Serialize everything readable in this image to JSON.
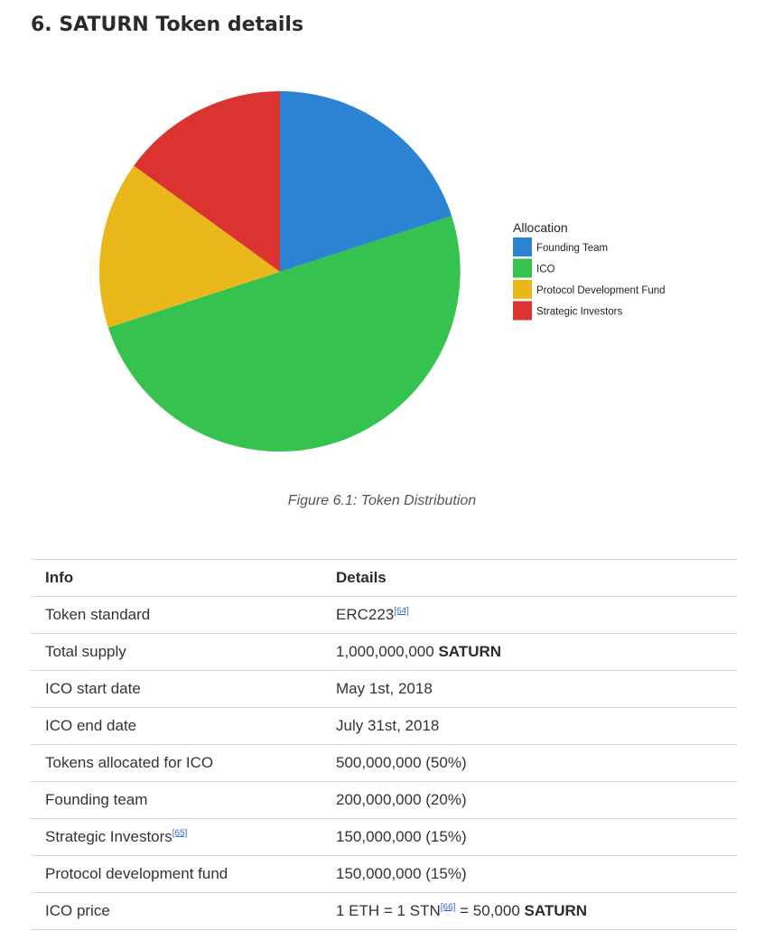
{
  "section": {
    "title": "6. SATURN Token details"
  },
  "chart_data": {
    "type": "pie",
    "legend_title": "Allocation",
    "legend_position": "right",
    "categories": [
      "Founding Team",
      "ICO",
      "Protocol Development Fund",
      "Strategic Investors"
    ],
    "values": [
      20,
      50,
      15,
      15
    ],
    "colors": [
      "#2b83d2",
      "#35c24f",
      "#eab81a",
      "#db3330"
    ]
  },
  "caption": "Figure 6.1: Token Distribution",
  "table": {
    "headers": [
      "Info",
      "Details"
    ],
    "rows": [
      {
        "label": "Token standard",
        "pre": "ERC223",
        "ref": "[64]",
        "mid": "",
        "bold": ""
      },
      {
        "label": "Total supply",
        "pre": "1,000,000,000 ",
        "ref": "",
        "mid": "",
        "bold": "SATURN"
      },
      {
        "label": "ICO start date",
        "pre": "May 1st, 2018",
        "ref": "",
        "mid": "",
        "bold": ""
      },
      {
        "label": "ICO end date",
        "pre": "July 31st, 2018",
        "ref": "",
        "mid": "",
        "bold": ""
      },
      {
        "label": "Tokens allocated for ICO",
        "pre": "500,000,000 (50%)",
        "ref": "",
        "mid": "",
        "bold": ""
      },
      {
        "label": "Founding team",
        "pre": "200,000,000 (20%)",
        "ref": "",
        "mid": "",
        "bold": ""
      },
      {
        "label": "Strategic Investors",
        "label_ref": "[65]",
        "pre": "150,000,000 (15%)",
        "ref": "",
        "mid": "",
        "bold": ""
      },
      {
        "label": "Protocol development fund",
        "pre": "150,000,000 (15%)",
        "ref": "",
        "mid": "",
        "bold": ""
      },
      {
        "label": "ICO price",
        "pre": "1 ETH = 1 STN",
        "ref": "[66]",
        "mid": " = 50,000 ",
        "bold": "SATURN"
      }
    ]
  }
}
